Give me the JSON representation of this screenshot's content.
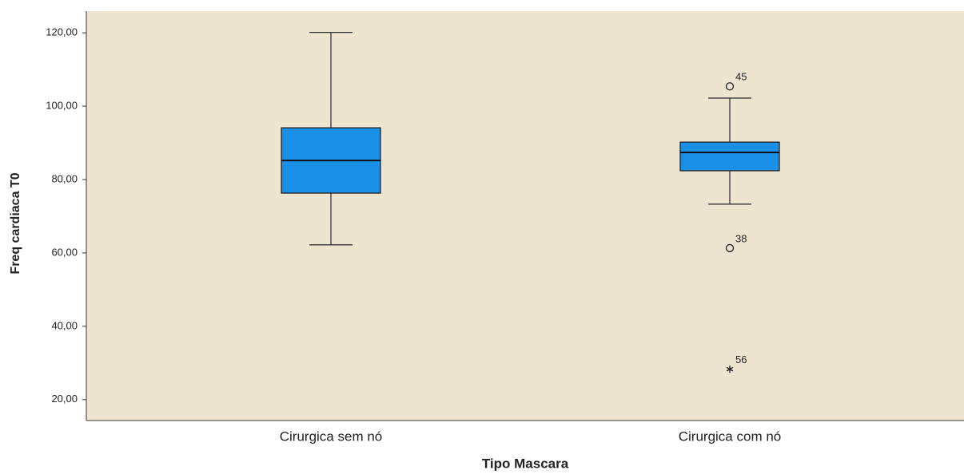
{
  "chart_data": {
    "type": "boxplot",
    "x_label": "Tipo Mascara",
    "y_label": "Freq cardiaca T0",
    "categories": [
      "Cirurgica sem nó",
      "Cirurgica com nó"
    ],
    "boxes": [
      {
        "whislo": 62.2,
        "q1": 76.3,
        "med": 85.2,
        "q3": 94.1,
        "whishi": 120.1
      },
      {
        "whislo": 73.3,
        "q1": 82.4,
        "med": 87.4,
        "q3": 90.2,
        "whishi": 102.2
      }
    ],
    "outliers": [
      {
        "category": 1,
        "value": 105.4,
        "label": "45",
        "marker": "circle"
      },
      {
        "category": 1,
        "value": 61.3,
        "label": "38",
        "marker": "circle"
      },
      {
        "category": 1,
        "value": 28.3,
        "label": "56",
        "marker": "star"
      }
    ],
    "color": "#1a8fe6",
    "background": "#ede5d0",
    "ylim": [
      14.3,
      125.9
    ],
    "yticks": [
      {
        "value": 20,
        "label": "20,00"
      },
      {
        "value": 40,
        "label": "40,00"
      },
      {
        "value": 60,
        "label": "60,00"
      },
      {
        "value": 80,
        "label": "80,00"
      },
      {
        "value": 100,
        "label": "100,00"
      },
      {
        "value": 120,
        "label": "120,00"
      }
    ]
  }
}
